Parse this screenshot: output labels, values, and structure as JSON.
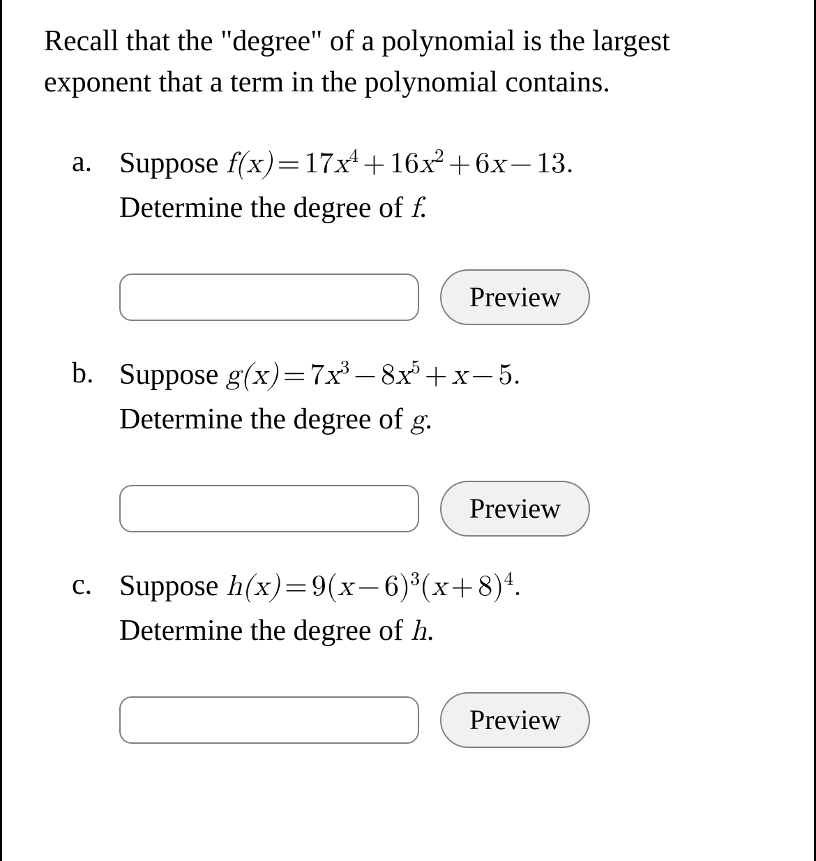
{
  "intro": "Recall that the \"degree\" of a polynomial is the largest exponent that a term in the polynomial contains.",
  "preview_label": "Preview",
  "questions": [
    {
      "marker": "a.",
      "prefix": "Suppose ",
      "formula_html": "f(x)<span class='op'>=</span><span class='num'>17</span>x<sup>4</sup><span class='op'>+</span><span class='num'>16</span>x<sup>2</sup><span class='op'>+</span><span class='num'>6</span>x<span class='op'>−</span><span class='num'>13</span><span class='num'>.</span>",
      "line2": "Determine the degree of ",
      "fn": "f",
      "period": "."
    },
    {
      "marker": "b.",
      "prefix": "Suppose ",
      "formula_html": "g(x)<span class='op'>=</span><span class='num'>7</span>x<sup>3</sup><span class='op'>−</span><span class='num'>8</span>x<sup>5</sup><span class='op'>+</span>x<span class='op'>−</span><span class='num'>5</span><span class='num'>.</span>",
      "line2": "Determine the degree of ",
      "fn": "g",
      "period": "."
    },
    {
      "marker": "c.",
      "prefix": "Suppose ",
      "formula_html": "h(x)<span class='op'>=</span><span class='num'>9(</span>x<span class='op'>−</span><span class='num'>6)</span><sup>3</sup><span class='num'>(</span>x<span class='op'>+</span><span class='num'>8)</span><sup>4</sup><span class='num'>.</span>",
      "line2": "Determine the degree of ",
      "fn": "h",
      "period": "."
    }
  ],
  "colors": {
    "text": "#000000",
    "background": "#ffffff",
    "border": "#808080",
    "button_bg": "#f1f1f1"
  },
  "fontsize": {
    "body": 42,
    "button": 40
  }
}
